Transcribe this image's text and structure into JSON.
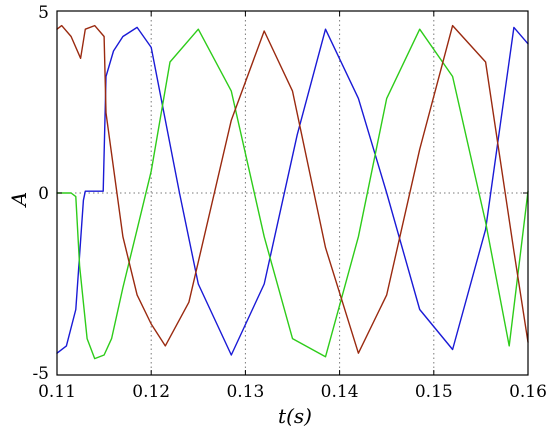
{
  "chart_data": {
    "type": "line",
    "xlabel": "t(s)",
    "ylabel": "A",
    "xlim": [
      0.11,
      0.16
    ],
    "ylim": [
      -5,
      5
    ],
    "x_ticks": [
      "0.11",
      "0.12",
      "0.13",
      "0.14",
      "0.15",
      "0.16"
    ],
    "y_ticks": [
      "-5",
      "0",
      "5"
    ],
    "grid": "dotted",
    "colors": {
      "phase_a": "#1a1ad6",
      "phase_b": "#2ecc1a",
      "phase_c": "#9a2a10",
      "grid": "#7a7a7a",
      "axes": "#000000"
    },
    "series": [
      {
        "color": "#1a1ad6",
        "x": [
          0.11,
          0.111,
          0.112,
          0.1128,
          0.113,
          0.1145,
          0.1149,
          0.1152,
          0.116,
          0.117,
          0.1185,
          0.12,
          0.123,
          0.125,
          0.1285,
          0.132,
          0.1355,
          0.1385,
          0.142,
          0.145,
          0.1485,
          0.152,
          0.1555,
          0.1585,
          0.16
        ],
        "y": [
          -4.4,
          -4.2,
          -3.2,
          -0.2,
          0.05,
          0.05,
          0.05,
          3.2,
          3.9,
          4.3,
          4.55,
          4.0,
          0.0,
          -2.5,
          -4.45,
          -2.5,
          1.6,
          4.5,
          2.6,
          0.0,
          -3.2,
          -4.3,
          -1.0,
          4.55,
          4.1
        ]
      },
      {
        "color": "#2ecc1a",
        "x": [
          0.11,
          0.1115,
          0.112,
          0.1124,
          0.1132,
          0.114,
          0.115,
          0.1158,
          0.117,
          0.1185,
          0.12,
          0.122,
          0.125,
          0.1285,
          0.132,
          0.135,
          0.1385,
          0.142,
          0.145,
          0.1485,
          0.152,
          0.1555,
          0.158,
          0.16
        ],
        "y": [
          0.0,
          0.0,
          -0.1,
          -2.0,
          -4.0,
          -4.55,
          -4.45,
          -4.0,
          -2.6,
          -1.0,
          0.6,
          3.6,
          4.5,
          2.8,
          -1.2,
          -4.0,
          -4.5,
          -1.2,
          2.6,
          4.5,
          3.2,
          -0.8,
          -4.2,
          0.05
        ]
      },
      {
        "color": "#9a2a10",
        "x": [
          0.11,
          0.1105,
          0.1115,
          0.1125,
          0.113,
          0.114,
          0.115,
          0.1152,
          0.117,
          0.1185,
          0.12,
          0.1215,
          0.124,
          0.1285,
          0.132,
          0.135,
          0.1385,
          0.142,
          0.145,
          0.1485,
          0.152,
          0.1555,
          0.1585,
          0.16
        ],
        "y": [
          4.5,
          4.6,
          4.3,
          3.7,
          4.5,
          4.6,
          4.3,
          2.2,
          -1.2,
          -2.8,
          -3.6,
          -4.2,
          -3.0,
          2.0,
          4.45,
          2.8,
          -1.5,
          -4.4,
          -2.8,
          1.2,
          4.6,
          3.6,
          -1.6,
          -4.1
        ]
      }
    ]
  }
}
